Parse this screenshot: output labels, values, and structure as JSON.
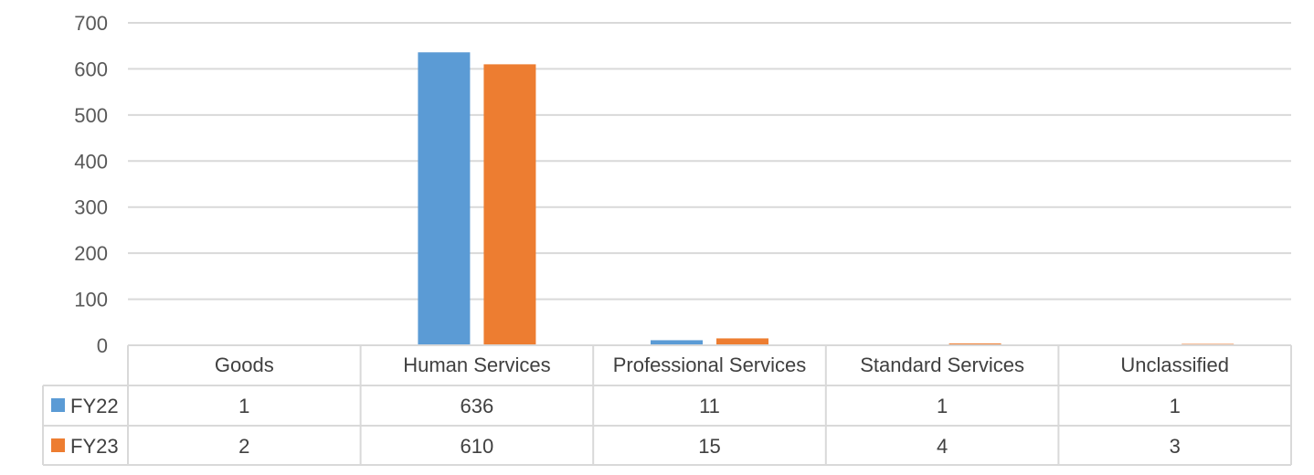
{
  "chart_data": {
    "type": "bar",
    "categories": [
      "Goods",
      "Human Services",
      "Professional Services",
      "Standard Services",
      "Unclassified"
    ],
    "series": [
      {
        "name": "FY22",
        "values": [
          1,
          636,
          11,
          1,
          1
        ],
        "color": "#5B9BD5"
      },
      {
        "name": "FY23",
        "values": [
          2,
          610,
          15,
          4,
          3
        ],
        "color": "#ED7D31"
      }
    ],
    "ylim": [
      0,
      700
    ],
    "yticks": [
      0,
      100,
      200,
      300,
      400,
      500,
      600,
      700
    ],
    "grid": true,
    "legend": "data-table-left",
    "data_table": true
  }
}
